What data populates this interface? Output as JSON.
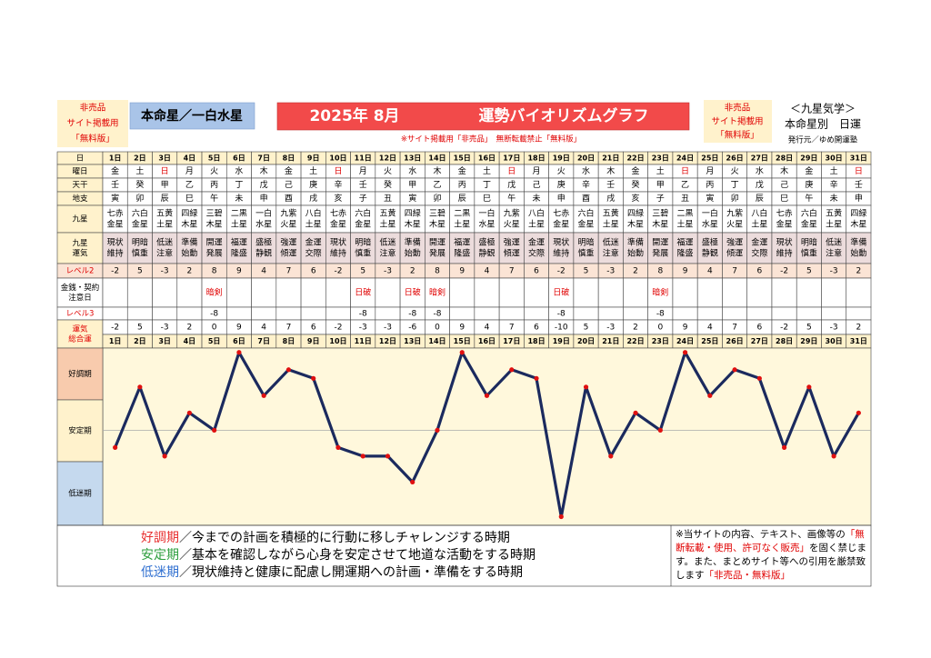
{
  "header": {
    "left_notice": [
      "非売品",
      "サイト掲載用",
      "「無料版」"
    ],
    "honmei": "本命星／一白水星",
    "month": "2025年 8月",
    "title": "運勢バイオリズムグラフ",
    "warning": "※サイト掲載用「非売品」　無断転載禁止「無料版」",
    "right_notice": [
      "非売品",
      "サイト掲載用",
      "「無料版」"
    ],
    "school": "＜九星気学＞",
    "subtitle": "本命星別　日運",
    "publisher": "発行元／ゆめ開運塾"
  },
  "table": {
    "labels": {
      "day": {
        "lines": [
          "日"
        ],
        "color": "#000000"
      },
      "weekday": {
        "lines": [
          "曜日"
        ],
        "color": "#000000"
      },
      "tenkan": {
        "lines": [
          "天干"
        ],
        "color": "#000000"
      },
      "chishi": {
        "lines": [
          "地支"
        ],
        "color": "#000000"
      },
      "kyusei": {
        "lines": [
          "九星"
        ],
        "color": "#000000"
      },
      "unki": {
        "lines": [
          "九星",
          "運気"
        ],
        "color": "#000000"
      },
      "level2": {
        "lines": [
          "レベル2"
        ],
        "color": "#e00000"
      },
      "caution": {
        "lines": [
          "金銭・契約",
          "注意日"
        ],
        "color": "#000000"
      },
      "level3": {
        "lines": [
          "レベル3"
        ],
        "color": "#e00000"
      },
      "total": {
        "lines": [
          "運気",
          "総合運"
        ],
        "color": "#e00000"
      }
    },
    "weekdays": [
      "金",
      "土",
      "日",
      "月",
      "火",
      "水",
      "木",
      "金",
      "土",
      "日",
      "月",
      "火",
      "水",
      "木",
      "金",
      "土",
      "日",
      "月",
      "火",
      "水",
      "木",
      "金",
      "土",
      "日",
      "月",
      "火",
      "水",
      "木",
      "金",
      "土",
      "日"
    ],
    "weekday_colors": [
      "#000",
      "#000",
      "#e00000",
      "#000",
      "#000",
      "#000",
      "#000",
      "#000",
      "#000",
      "#e00000",
      "#000",
      "#000",
      "#000",
      "#000",
      "#000",
      "#000",
      "#e00000",
      "#000",
      "#000",
      "#000",
      "#000",
      "#000",
      "#000",
      "#e00000",
      "#000",
      "#000",
      "#000",
      "#000",
      "#000",
      "#000",
      "#e00000"
    ],
    "tenkan": [
      "壬",
      "癸",
      "甲",
      "乙",
      "丙",
      "丁",
      "戊",
      "己",
      "庚",
      "辛",
      "壬",
      "癸",
      "甲",
      "乙",
      "丙",
      "丁",
      "戊",
      "己",
      "庚",
      "辛",
      "壬",
      "癸",
      "甲",
      "乙",
      "丙",
      "丁",
      "戊",
      "己",
      "庚",
      "辛",
      "壬"
    ],
    "chishi": [
      "寅",
      "卯",
      "辰",
      "巳",
      "午",
      "未",
      "申",
      "酉",
      "戌",
      "亥",
      "子",
      "丑",
      "寅",
      "卯",
      "辰",
      "巳",
      "午",
      "未",
      "申",
      "酉",
      "戌",
      "亥",
      "子",
      "丑",
      "寅",
      "卯",
      "辰",
      "巳",
      "午",
      "未",
      "申"
    ],
    "kyusei": [
      [
        "七赤",
        "金星"
      ],
      [
        "六白",
        "金星"
      ],
      [
        "五黄",
        "土星"
      ],
      [
        "四緑",
        "木星"
      ],
      [
        "三碧",
        "木星"
      ],
      [
        "二黒",
        "土星"
      ],
      [
        "一白",
        "水星"
      ],
      [
        "九紫",
        "火星"
      ],
      [
        "八白",
        "土星"
      ],
      [
        "七赤",
        "金星"
      ],
      [
        "六白",
        "金星"
      ],
      [
        "五黄",
        "土星"
      ],
      [
        "四緑",
        "木星"
      ],
      [
        "三碧",
        "木星"
      ],
      [
        "二黒",
        "土星"
      ],
      [
        "一白",
        "水星"
      ],
      [
        "九紫",
        "火星"
      ],
      [
        "八白",
        "土星"
      ],
      [
        "七赤",
        "金星"
      ],
      [
        "六白",
        "金星"
      ],
      [
        "五黄",
        "土星"
      ],
      [
        "四緑",
        "木星"
      ],
      [
        "三碧",
        "木星"
      ],
      [
        "二黒",
        "土星"
      ],
      [
        "一白",
        "水星"
      ],
      [
        "九紫",
        "火星"
      ],
      [
        "八白",
        "土星"
      ],
      [
        "七赤",
        "金星"
      ],
      [
        "六白",
        "金星"
      ],
      [
        "五黄",
        "土星"
      ],
      [
        "四緑",
        "木星"
      ]
    ],
    "unki": [
      [
        "現状",
        "維持"
      ],
      [
        "明暗",
        "慎重"
      ],
      [
        "低迷",
        "注意"
      ],
      [
        "準備",
        "始動"
      ],
      [
        "開運",
        "発展"
      ],
      [
        "福運",
        "隆盛"
      ],
      [
        "盛極",
        "静観"
      ],
      [
        "強運",
        "傾運"
      ],
      [
        "金運",
        "交際"
      ],
      [
        "現状",
        "維持"
      ],
      [
        "明暗",
        "慎重"
      ],
      [
        "低迷",
        "注意"
      ],
      [
        "準備",
        "始動"
      ],
      [
        "開運",
        "発展"
      ],
      [
        "福運",
        "隆盛"
      ],
      [
        "盛極",
        "静観"
      ],
      [
        "強運",
        "傾運"
      ],
      [
        "金運",
        "交際"
      ],
      [
        "現状",
        "維持"
      ],
      [
        "明暗",
        "慎重"
      ],
      [
        "低迷",
        "注意"
      ],
      [
        "準備",
        "始動"
      ],
      [
        "開運",
        "発展"
      ],
      [
        "福運",
        "隆盛"
      ],
      [
        "盛極",
        "静観"
      ],
      [
        "強運",
        "傾運"
      ],
      [
        "金運",
        "交際"
      ],
      [
        "現状",
        "維持"
      ],
      [
        "明暗",
        "慎重"
      ],
      [
        "低迷",
        "注意"
      ],
      [
        "準備",
        "始動"
      ]
    ],
    "level2": [
      -2,
      5,
      -3,
      2,
      8,
      9,
      4,
      7,
      6,
      -2,
      5,
      -3,
      2,
      8,
      9,
      4,
      7,
      6,
      -2,
      5,
      -3,
      2,
      8,
      9,
      4,
      7,
      6,
      -2,
      5,
      -3,
      2
    ],
    "caution": [
      null,
      null,
      null,
      null,
      "暗剣",
      null,
      null,
      null,
      null,
      null,
      "日破",
      null,
      "日破",
      "暗剣",
      null,
      null,
      null,
      null,
      "日破",
      null,
      null,
      null,
      "暗剣",
      null,
      null,
      null,
      null,
      null,
      null,
      null,
      null
    ],
    "caution_color": "#e00000",
    "level3": [
      null,
      null,
      null,
      null,
      -8,
      null,
      null,
      null,
      null,
      null,
      -8,
      null,
      -8,
      -8,
      null,
      null,
      null,
      null,
      -8,
      null,
      null,
      null,
      -8,
      null,
      null,
      null,
      null,
      null,
      null,
      null,
      null
    ]
  },
  "chart_data": {
    "type": "line",
    "categories": [
      "1日",
      "2日",
      "3日",
      "4日",
      "5日",
      "6日",
      "7日",
      "8日",
      "9日",
      "10日",
      "11日",
      "12日",
      "13日",
      "14日",
      "15日",
      "16日",
      "17日",
      "18日",
      "19日",
      "20日",
      "21日",
      "22日",
      "23日",
      "24日",
      "25日",
      "26日",
      "27日",
      "28日",
      "29日",
      "30日",
      "31日"
    ],
    "values": [
      -2,
      5,
      -3,
      2,
      0,
      9,
      4,
      7,
      6,
      -2,
      -3,
      -3,
      -6,
      0,
      9,
      4,
      7,
      6,
      -10,
      5,
      -3,
      2,
      0,
      9,
      4,
      7,
      6,
      -2,
      5,
      -3,
      2
    ],
    "color": "#1b2a5e",
    "point_color": "#e01010",
    "ylim": [
      -11,
      9.5
    ],
    "bands": [
      {
        "label": "好調期",
        "color": "#f8cbad"
      },
      {
        "label": "安定期",
        "color": "#fff2cc"
      },
      {
        "label": "低迷期",
        "color": "#c5d9ee"
      }
    ]
  },
  "footer": {
    "legend": [
      {
        "term": "好調期",
        "color": "#e83030",
        "text": "／今までの計画を積極的に行動に移しチャレンジする時期"
      },
      {
        "term": "安定期",
        "color": "#2e9e3e",
        "text": "／基本を確認しながら心身を安定させて地道な活動をする時期"
      },
      {
        "term": "低迷期",
        "color": "#2f6fd0",
        "text": "／現状維持と健康に配慮し開運期への計画・準備をする時期"
      }
    ],
    "notice": [
      {
        "text": "※当サイトの内容、テキスト、画像等の",
        "color": "#000000"
      },
      {
        "text": "「無断転載・使用、許可なく販売」",
        "color": "#e00000"
      },
      {
        "text": "を固く禁じます。また、まとめサイト等への引用を厳禁致します",
        "color": "#000000"
      },
      {
        "text": "「非売品・無料版」",
        "color": "#e00000"
      }
    ]
  }
}
